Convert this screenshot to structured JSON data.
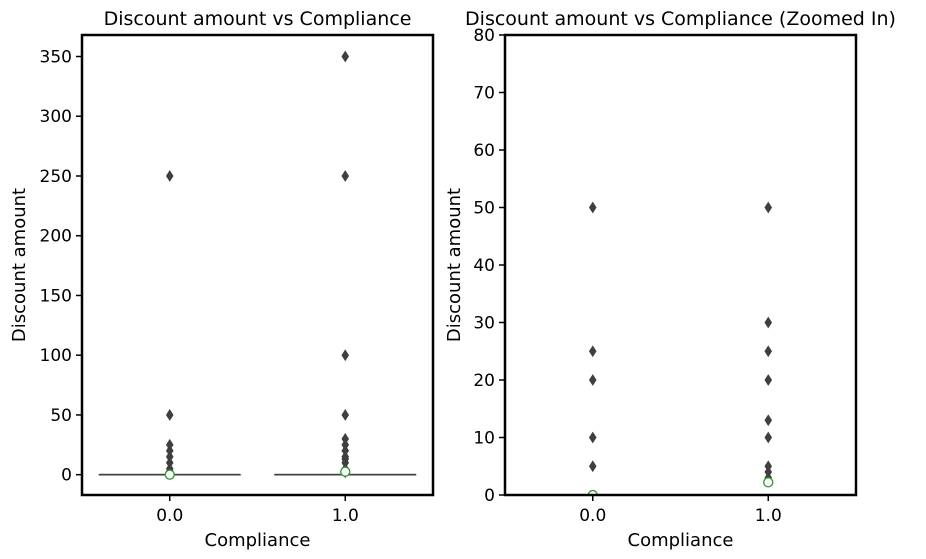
{
  "chart_data": [
    {
      "type": "box",
      "title": "Discount amount vs Compliance",
      "xlabel": "Compliance",
      "ylabel": "Discount amount",
      "categories": [
        "0.0",
        "1.0"
      ],
      "ylim": [
        -17,
        368
      ],
      "yticks": [
        0,
        50,
        100,
        150,
        200,
        250,
        300,
        350
      ],
      "ytick_labels": [
        "0",
        "50",
        "100",
        "150",
        "200",
        "250",
        "300",
        "350"
      ],
      "boxes": [
        {
          "category": "0.0",
          "median": 0,
          "q1": 0,
          "q3": 0,
          "whisker_low": 0,
          "whisker_high": 0,
          "mean": 0,
          "outliers": [
            3,
            5,
            10,
            15,
            20,
            25,
            50,
            250
          ]
        },
        {
          "category": "1.0",
          "median": 0,
          "q1": 0,
          "q3": 0,
          "whisker_low": 0,
          "whisker_high": 0,
          "mean": 2.5,
          "outliers": [
            2,
            3,
            4,
            5,
            10,
            13,
            15,
            20,
            25,
            30,
            50,
            100,
            250,
            350
          ]
        }
      ]
    },
    {
      "type": "box",
      "title": "Discount amount vs Compliance (Zoomed In)",
      "xlabel": "Compliance",
      "ylabel": "Discount amount",
      "categories": [
        "0.0",
        "1.0"
      ],
      "ylim": [
        0,
        80
      ],
      "yticks": [
        0,
        10,
        20,
        30,
        40,
        50,
        60,
        70,
        80
      ],
      "ytick_labels": [
        "0",
        "10",
        "20",
        "30",
        "40",
        "50",
        "60",
        "70",
        "80"
      ],
      "boxes": [
        {
          "category": "0.0",
          "median": 0,
          "q1": 0,
          "q3": 0,
          "whisker_low": 0,
          "whisker_high": 0,
          "mean": 0,
          "outliers": [
            5,
            10,
            20,
            25,
            50
          ]
        },
        {
          "category": "1.0",
          "median": 0,
          "q1": 0,
          "q3": 0,
          "whisker_low": 0,
          "whisker_high": 0,
          "mean": 2.2,
          "outliers": [
            3,
            4,
            5,
            10,
            13,
            20,
            25,
            30,
            50
          ]
        }
      ]
    }
  ],
  "colors": {
    "box_line": "#3f3f3f",
    "outlier": "#3f3f3f",
    "mean_edge": "#3a9a3a",
    "mean_fill": "#ffffff"
  }
}
